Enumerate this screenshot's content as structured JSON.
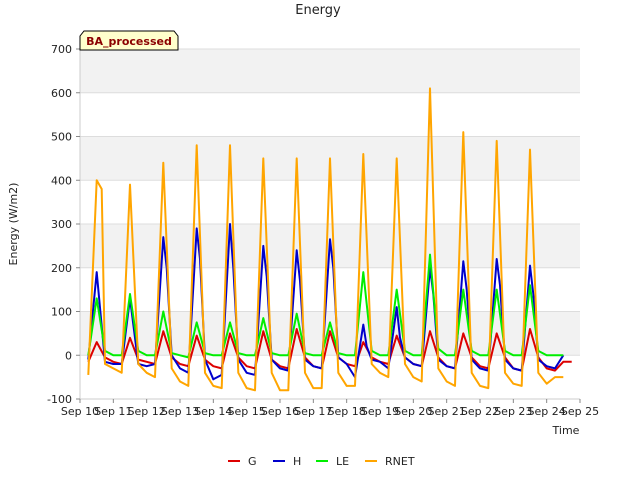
{
  "chart_data": {
    "type": "line",
    "title": "Energy",
    "xlabel": "Time",
    "ylabel": "Energy (W/m2)",
    "badge": "BA_processed",
    "ylim": [
      -100,
      700
    ],
    "yticks": [
      -100,
      0,
      100,
      200,
      300,
      400,
      500,
      600,
      700
    ],
    "xlim": [
      10,
      25
    ],
    "xticks": [
      {
        "day": 10,
        "label": "Sep 10"
      },
      {
        "day": 11,
        "label": "Sep 11"
      },
      {
        "day": 12,
        "label": "Sep 12"
      },
      {
        "day": 13,
        "label": "Sep 13"
      },
      {
        "day": 14,
        "label": "Sep 14"
      },
      {
        "day": 15,
        "label": "Sep 15"
      },
      {
        "day": 16,
        "label": "Sep 16"
      },
      {
        "day": 17,
        "label": "Sep 17"
      },
      {
        "day": 18,
        "label": "Sep 18"
      },
      {
        "day": 19,
        "label": "Sep 19"
      },
      {
        "day": 20,
        "label": "Sep 20"
      },
      {
        "day": 21,
        "label": "Sep 21"
      },
      {
        "day": 22,
        "label": "Sep 22"
      },
      {
        "day": 23,
        "label": "Sep 23"
      },
      {
        "day": 24,
        "label": "Sep 24"
      },
      {
        "day": 25,
        "label": "Sep 25"
      }
    ],
    "legend_position": "bottom",
    "grid": true,
    "series": [
      {
        "name": "G",
        "color": "#dd0000",
        "x": [
          10.25,
          10.5,
          10.75,
          11.0,
          11.25,
          11.5,
          11.75,
          12.0,
          12.25,
          12.5,
          12.75,
          13.0,
          13.25,
          13.5,
          13.75,
          14.0,
          14.25,
          14.5,
          14.75,
          15.0,
          15.25,
          15.5,
          15.75,
          16.0,
          16.25,
          16.5,
          16.75,
          17.0,
          17.25,
          17.5,
          17.75,
          18.0,
          18.25,
          18.5,
          18.75,
          19.0,
          19.25,
          19.5,
          19.75,
          20.0,
          20.25,
          20.5,
          20.75,
          21.0,
          21.25,
          21.5,
          21.75,
          22.0,
          22.25,
          22.5,
          22.75,
          23.0,
          23.25,
          23.5,
          23.75,
          24.0,
          24.25,
          24.5,
          24.75
        ],
        "y": [
          -15,
          30,
          -5,
          -15,
          -20,
          40,
          -10,
          -15,
          -20,
          55,
          -5,
          -20,
          -25,
          45,
          -10,
          -25,
          -30,
          50,
          -5,
          -25,
          -30,
          55,
          -10,
          -25,
          -30,
          60,
          -5,
          -25,
          -30,
          55,
          -5,
          -20,
          -25,
          30,
          -5,
          -15,
          -20,
          45,
          -5,
          -20,
          -25,
          55,
          -5,
          -25,
          -30,
          50,
          -5,
          -25,
          -30,
          50,
          -5,
          -30,
          -35,
          60,
          -5,
          -30,
          -35,
          -15,
          -15
        ]
      },
      {
        "name": "H",
        "color": "#0000cc",
        "x": [
          10.25,
          10.5,
          10.75,
          11.0,
          11.25,
          11.5,
          11.75,
          12.0,
          12.25,
          12.5,
          12.6,
          12.75,
          13.0,
          13.25,
          13.5,
          13.6,
          13.75,
          14.0,
          14.25,
          14.5,
          14.6,
          14.75,
          15.0,
          15.25,
          15.5,
          15.6,
          15.75,
          16.0,
          16.25,
          16.5,
          16.6,
          16.75,
          17.0,
          17.25,
          17.5,
          17.6,
          17.75,
          18.0,
          18.25,
          18.5,
          18.6,
          18.75,
          19.0,
          19.25,
          19.5,
          19.6,
          19.75,
          20.0,
          20.25,
          20.5,
          20.6,
          20.75,
          21.0,
          21.25,
          21.5,
          21.6,
          21.75,
          22.0,
          22.25,
          22.5,
          22.6,
          22.75,
          23.0,
          23.25,
          23.5,
          23.6,
          23.75,
          24.0,
          24.25,
          24.5
        ],
        "y": [
          -10,
          190,
          -15,
          -20,
          -20,
          130,
          -20,
          -25,
          -20,
          270,
          200,
          0,
          -30,
          -40,
          290,
          220,
          -10,
          -55,
          -45,
          300,
          200,
          -10,
          -40,
          -45,
          250,
          180,
          -10,
          -30,
          -35,
          240,
          170,
          -10,
          -25,
          -30,
          265,
          200,
          -5,
          -20,
          -50,
          70,
          20,
          -10,
          -15,
          -30,
          110,
          40,
          -5,
          -20,
          -25,
          200,
          140,
          -10,
          -25,
          -30,
          215,
          150,
          -10,
          -30,
          -35,
          220,
          160,
          -10,
          -30,
          -35,
          205,
          140,
          -10,
          -25,
          -30,
          0
        ]
      },
      {
        "name": "LE",
        "color": "#00ee00",
        "x": [
          10.25,
          10.5,
          10.75,
          11.0,
          11.25,
          11.5,
          11.75,
          12.0,
          12.25,
          12.5,
          12.75,
          13.0,
          13.25,
          13.5,
          13.75,
          14.0,
          14.25,
          14.5,
          14.75,
          15.0,
          15.25,
          15.5,
          15.75,
          16.0,
          16.25,
          16.5,
          16.75,
          17.0,
          17.25,
          17.5,
          17.75,
          18.0,
          18.25,
          18.5,
          18.75,
          19.0,
          19.25,
          19.5,
          19.75,
          20.0,
          20.25,
          20.5,
          20.75,
          21.0,
          21.25,
          21.5,
          21.75,
          22.0,
          22.25,
          22.5,
          22.75,
          23.0,
          23.25,
          23.5,
          23.75,
          24.0,
          24.25,
          24.5
        ],
        "y": [
          0,
          130,
          10,
          0,
          0,
          140,
          10,
          0,
          0,
          100,
          5,
          0,
          -5,
          75,
          5,
          0,
          0,
          75,
          5,
          0,
          0,
          85,
          5,
          0,
          0,
          95,
          5,
          0,
          0,
          75,
          5,
          0,
          0,
          190,
          10,
          0,
          0,
          150,
          10,
          0,
          0,
          230,
          15,
          0,
          0,
          150,
          10,
          0,
          0,
          150,
          10,
          0,
          0,
          160,
          10,
          0,
          0,
          0
        ]
      },
      {
        "name": "RNET",
        "color": "#ffa500",
        "x": [
          10.25,
          10.5,
          10.65,
          10.75,
          11.0,
          11.25,
          11.5,
          11.75,
          12.0,
          12.25,
          12.5,
          12.75,
          13.0,
          13.25,
          13.5,
          13.75,
          14.0,
          14.25,
          14.5,
          14.75,
          15.0,
          15.25,
          15.5,
          15.75,
          16.0,
          16.25,
          16.5,
          16.75,
          17.0,
          17.25,
          17.5,
          17.75,
          18.0,
          18.25,
          18.5,
          18.75,
          19.0,
          19.25,
          19.5,
          19.75,
          20.0,
          20.25,
          20.5,
          20.75,
          21.0,
          21.25,
          21.5,
          21.75,
          22.0,
          22.25,
          22.5,
          22.75,
          23.0,
          23.25,
          23.5,
          23.75,
          24.0,
          24.25,
          24.5
        ],
        "y": [
          -45,
          400,
          380,
          -20,
          -30,
          -40,
          390,
          -20,
          -40,
          -50,
          440,
          -30,
          -60,
          -70,
          480,
          -40,
          -70,
          -75,
          480,
          -40,
          -75,
          -80,
          450,
          -40,
          -80,
          -80,
          450,
          -40,
          -75,
          -75,
          450,
          -40,
          -70,
          -70,
          460,
          -20,
          -40,
          -50,
          450,
          -20,
          -50,
          -60,
          610,
          -30,
          -60,
          -70,
          510,
          -40,
          -70,
          -75,
          490,
          -40,
          -65,
          -70,
          470,
          -40,
          -65,
          -50,
          -50
        ]
      }
    ]
  }
}
